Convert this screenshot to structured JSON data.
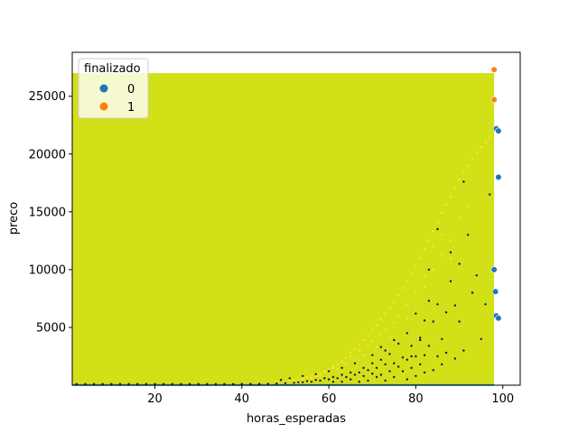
{
  "chart_data": {
    "type": "scatter",
    "xlabel": "horas_esperadas",
    "ylabel": "preco",
    "xlim": [
      1,
      104
    ],
    "ylim": [
      0,
      28800
    ],
    "x_ticks": [
      20,
      40,
      60,
      80,
      100
    ],
    "y_ticks": [
      5000,
      10000,
      15000,
      20000,
      25000
    ],
    "grid": false,
    "legend": {
      "title": "finalizado",
      "placement": "top-left",
      "entries": [
        {
          "label": "0",
          "color": "#1f77b4"
        },
        {
          "label": "1",
          "color": "#ff7f0e"
        }
      ]
    },
    "background_region": {
      "x": [
        1,
        98
      ],
      "y": [
        100,
        27000
      ],
      "color": "#d2e017"
    },
    "bottom_band": {
      "y": [
        0,
        100
      ],
      "color": "#22a884"
    },
    "series": [
      {
        "name": "0",
        "color": "#1f77b4",
        "points": [
          [
            98.5,
            22200
          ],
          [
            99,
            22000
          ],
          [
            99,
            18000
          ],
          [
            98,
            10000
          ],
          [
            98.3,
            8100
          ],
          [
            98.5,
            6000
          ],
          [
            99,
            5800
          ]
        ]
      },
      {
        "name": "1",
        "color": "#ff7f0e",
        "points": [
          [
            98,
            27300
          ],
          [
            98,
            24700
          ]
        ]
      },
      {
        "name": "",
        "color": "#ffe62a",
        "points": [
          [
            97,
            21400
          ],
          [
            96,
            21000
          ],
          [
            95,
            20600
          ],
          [
            94,
            20100
          ],
          [
            93,
            19600
          ],
          [
            92,
            19000
          ],
          [
            91,
            18400
          ],
          [
            90,
            17800
          ],
          [
            89,
            17000
          ],
          [
            88,
            16300
          ],
          [
            87,
            15600
          ],
          [
            86,
            14900
          ],
          [
            85,
            14100
          ],
          [
            84,
            13300
          ],
          [
            83,
            12500
          ],
          [
            82,
            11800
          ],
          [
            81,
            11000
          ],
          [
            80,
            10300
          ],
          [
            79,
            9700
          ],
          [
            78,
            9000
          ],
          [
            77,
            8400
          ],
          [
            76,
            7800
          ],
          [
            75,
            7200
          ],
          [
            74,
            6700
          ],
          [
            73,
            6200
          ],
          [
            72,
            5700
          ],
          [
            71,
            5200
          ],
          [
            70,
            4800
          ],
          [
            69,
            4300
          ],
          [
            68,
            3900
          ],
          [
            67,
            3500
          ],
          [
            66,
            3100
          ],
          [
            65,
            2800
          ],
          [
            64,
            2400
          ],
          [
            63,
            2100
          ],
          [
            62,
            1800
          ],
          [
            61,
            1600
          ],
          [
            60,
            1400
          ],
          [
            59,
            1200
          ],
          [
            58,
            1000
          ],
          [
            57,
            900
          ],
          [
            56,
            800
          ],
          [
            55,
            700
          ],
          [
            54,
            600
          ],
          [
            53,
            500
          ],
          [
            52,
            450
          ],
          [
            51,
            400
          ],
          [
            50,
            350
          ],
          [
            48,
            300
          ],
          [
            46,
            250
          ],
          [
            44,
            200
          ],
          [
            42,
            180
          ],
          [
            40,
            150
          ],
          [
            38,
            140
          ],
          [
            36,
            130
          ],
          [
            34,
            120
          ],
          [
            32,
            115
          ],
          [
            30,
            110
          ],
          [
            28,
            108
          ],
          [
            26,
            106
          ],
          [
            24,
            104
          ],
          [
            22,
            103
          ],
          [
            20,
            102
          ],
          [
            18,
            101
          ],
          [
            16,
            100
          ],
          [
            14,
            100
          ],
          [
            12,
            100
          ],
          [
            10,
            100
          ],
          [
            8,
            100
          ],
          [
            6,
            100
          ],
          [
            4,
            100
          ],
          [
            86,
            13000
          ],
          [
            84,
            12000
          ],
          [
            82,
            9500
          ],
          [
            80,
            8000
          ],
          [
            78,
            7000
          ],
          [
            76,
            6000
          ],
          [
            75,
            5400
          ],
          [
            73,
            4800
          ],
          [
            72,
            4300
          ],
          [
            70,
            3800
          ],
          [
            69,
            3500
          ],
          [
            67,
            3000
          ],
          [
            65,
            2500
          ],
          [
            63,
            2000
          ],
          [
            61,
            1500
          ],
          [
            59,
            1100
          ],
          [
            57,
            800
          ],
          [
            55,
            600
          ],
          [
            92,
            15500
          ],
          [
            90,
            14500
          ],
          [
            88,
            12500
          ],
          [
            86,
            11200
          ],
          [
            84,
            10000
          ],
          [
            88,
            11000
          ],
          [
            82,
            8500
          ],
          [
            80,
            7000
          ],
          [
            78,
            5800
          ],
          [
            74,
            4200
          ],
          [
            71,
            3300
          ],
          [
            68,
            2600
          ],
          [
            66,
            2200
          ],
          [
            64,
            1800
          ],
          [
            62,
            1400
          ],
          [
            60,
            1100
          ],
          [
            58,
            800
          ],
          [
            56,
            600
          ],
          [
            54,
            450
          ],
          [
            52,
            350
          ]
        ]
      },
      {
        "name": "",
        "color": "#2b0a3d",
        "points": [
          [
            97,
            16500
          ],
          [
            96,
            7000
          ],
          [
            95,
            4000
          ],
          [
            94,
            9500
          ],
          [
            93,
            8000
          ],
          [
            92,
            13000
          ],
          [
            91,
            17600
          ],
          [
            91,
            3000
          ],
          [
            90,
            10500
          ],
          [
            90,
            5500
          ],
          [
            89,
            6900
          ],
          [
            89,
            2300
          ],
          [
            88,
            11500
          ],
          [
            88,
            9000
          ],
          [
            87,
            6300
          ],
          [
            87,
            2800
          ],
          [
            86,
            4000
          ],
          [
            86,
            1800
          ],
          [
            85,
            13500
          ],
          [
            85,
            7000
          ],
          [
            85,
            2500
          ],
          [
            84,
            5500
          ],
          [
            84,
            1300
          ],
          [
            83,
            10000
          ],
          [
            83,
            7300
          ],
          [
            83,
            3400
          ],
          [
            82,
            5600
          ],
          [
            82,
            2600
          ],
          [
            82,
            1100
          ],
          [
            81,
            3900
          ],
          [
            81,
            1800
          ],
          [
            80,
            6200
          ],
          [
            80,
            2500
          ],
          [
            80,
            800
          ],
          [
            79,
            3400
          ],
          [
            79,
            1500
          ],
          [
            78,
            4500
          ],
          [
            78,
            2200
          ],
          [
            78,
            500
          ],
          [
            77,
            2400
          ],
          [
            77,
            1200
          ],
          [
            76,
            3600
          ],
          [
            76,
            1600
          ],
          [
            75,
            1900
          ],
          [
            75,
            700
          ],
          [
            74,
            2700
          ],
          [
            74,
            1200
          ],
          [
            73,
            3000
          ],
          [
            73,
            1800
          ],
          [
            73,
            400
          ],
          [
            72,
            2200
          ],
          [
            72,
            900
          ],
          [
            71,
            1500
          ],
          [
            71,
            700
          ],
          [
            70,
            1900
          ],
          [
            70,
            1000
          ],
          [
            69,
            1300
          ],
          [
            69,
            400
          ],
          [
            68,
            1500
          ],
          [
            68,
            800
          ],
          [
            67,
            1100
          ],
          [
            67,
            300
          ],
          [
            66,
            900
          ],
          [
            65,
            1100
          ],
          [
            65,
            500
          ],
          [
            64,
            700
          ],
          [
            63,
            900
          ],
          [
            63,
            300
          ],
          [
            62,
            600
          ],
          [
            61,
            700
          ],
          [
            61,
            300
          ],
          [
            60,
            500
          ],
          [
            59,
            600
          ],
          [
            58,
            400
          ],
          [
            57,
            450
          ],
          [
            56,
            300
          ],
          [
            55,
            350
          ],
          [
            54,
            250
          ],
          [
            53,
            250
          ],
          [
            52,
            200
          ],
          [
            50,
            180
          ],
          [
            48,
            150
          ],
          [
            46,
            130
          ],
          [
            44,
            120
          ],
          [
            42,
            110
          ],
          [
            40,
            110
          ],
          [
            38,
            105
          ],
          [
            36,
            105
          ],
          [
            34,
            103
          ],
          [
            32,
            102
          ],
          [
            30,
            102
          ],
          [
            28,
            101
          ],
          [
            26,
            101
          ],
          [
            24,
            100
          ],
          [
            22,
            100
          ],
          [
            20,
            100
          ],
          [
            18,
            100
          ],
          [
            16,
            100
          ],
          [
            14,
            100
          ],
          [
            12,
            100
          ],
          [
            10,
            100
          ],
          [
            8,
            100
          ],
          [
            6,
            100
          ],
          [
            4,
            100
          ],
          [
            2,
            100
          ],
          [
            81,
            4100
          ],
          [
            79,
            2500
          ],
          [
            75,
            3900
          ],
          [
            72,
            3300
          ],
          [
            70,
            2600
          ],
          [
            66,
            1900
          ],
          [
            63,
            1500
          ],
          [
            60,
            1200
          ],
          [
            57,
            950
          ],
          [
            54,
            800
          ],
          [
            51,
            600
          ],
          [
            49,
            450
          ]
        ]
      }
    ]
  }
}
